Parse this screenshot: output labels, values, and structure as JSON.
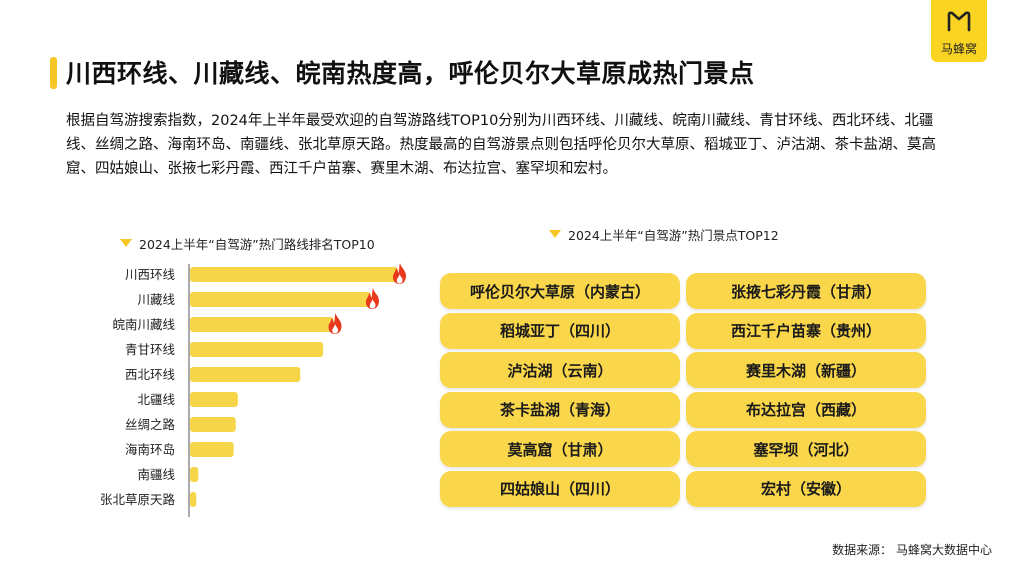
{
  "header": {
    "title": "川西环线、川藏线、皖南热度高，呼伦贝尔大草原成热门景点",
    "logo_text": "马蜂窝"
  },
  "description": "根据自驾游搜索指数，2024年上半年最受欢迎的自驾游路线TOP10分别为川西环线、川藏线、皖南川藏线、青甘环线、西北环线、北疆线、丝绸之路、海南环岛、南疆线、张北草原天路。热度最高的自驾游景点则包括呼伦贝尔大草原、稻城亚丁、泸沽湖、茶卡盐湖、莫高窟、四姑娘山、张掖七彩丹霞、西江千户苗寨、赛里木湖、布达拉宫、塞罕坝和宏村。",
  "chart_data": [
    {
      "type": "bar",
      "orientation": "horizontal",
      "title": "2024上半年“自驾游”热门路线排名TOP10",
      "categories": [
        "川西环线",
        "川藏线",
        "皖南川藏线",
        "青甘环线",
        "西北环线",
        "北疆线",
        "丝绸之路",
        "海南环岛",
        "南疆线",
        "张北草原天路"
      ],
      "values": [
        100,
        87,
        69,
        64,
        53,
        23,
        22,
        21,
        4,
        3
      ],
      "hot_markers": [
        "fire-icon",
        "fire-icon",
        "fire-icon",
        null,
        null,
        null,
        null,
        null,
        null,
        null
      ],
      "bar_color": "#f6d548",
      "xlim": [
        0,
        100
      ],
      "grid": false,
      "value_axis_labels": false
    },
    {
      "type": "table",
      "title": "2024上半年“自驾游”热门景点TOP12",
      "columns": [
        [
          "呼伦贝尔大草原（内蒙古）",
          "稻城亚丁（四川）",
          "泸沽湖（云南）",
          "茶卡盐湖（青海）",
          "莫高窟（甘肃）",
          "四姑娘山（四川）"
        ],
        [
          "张掖七彩丹霞（甘肃）",
          "西江千户苗寨（贵州）",
          "赛里木湖（新疆）",
          "布达拉宫（西藏）",
          "塞罕坝（河北）",
          "宏村（安徽）"
        ]
      ],
      "cell_color": "#f9d64a"
    }
  ],
  "footer": {
    "source": "数据来源：  马蜂窝大数据中心"
  }
}
